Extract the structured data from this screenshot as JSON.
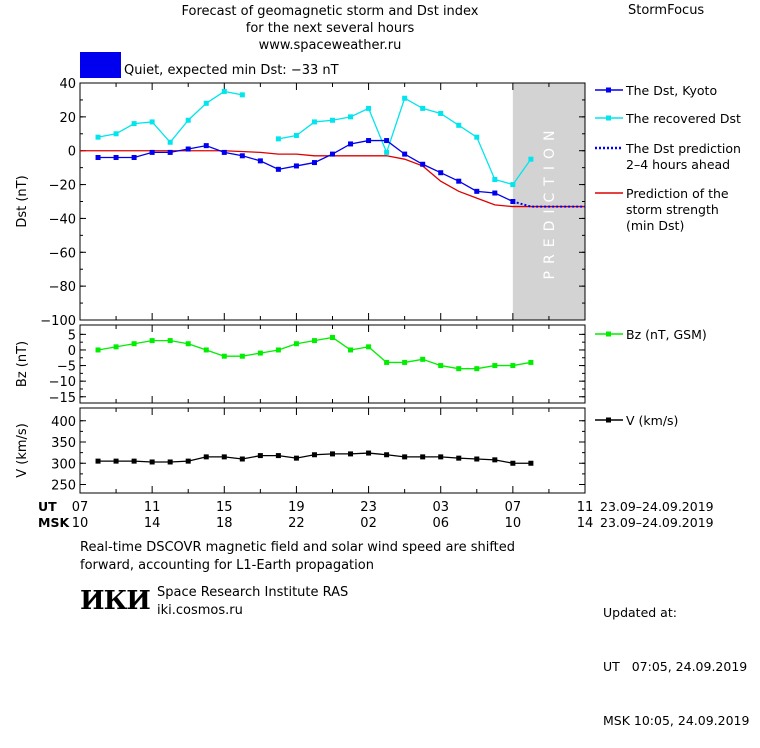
{
  "header": {
    "title_line1": "Forecast of geomagnetic storm and Dst index",
    "title_line2": "for the next several hours",
    "url": "www.spaceweather.ru",
    "brand": "StormFocus",
    "status": "Quiet, expected min Dst: −33 nT",
    "status_color": "#0000ee"
  },
  "legend": {
    "dst_kyoto": "The Dst, Kyoto",
    "recovered": "The recovered Dst",
    "prediction_line1": "The Dst prediction",
    "prediction_line2": "2–4 hours ahead",
    "strength_line1": "Prediction of the",
    "strength_line2": "storm strength",
    "strength_line3": "(min Dst)",
    "bz": "Bz (nT, GSM)",
    "v": "V (km/s)"
  },
  "axes": {
    "dst_label": "Dst (nT)",
    "bz_label": "Bz (nT)",
    "v_label": "V (km/s)",
    "ut_label": "UT",
    "msk_label": "MSK",
    "ut_ticks": [
      "07",
      "11",
      "15",
      "19",
      "23",
      "03",
      "07",
      "11"
    ],
    "msk_ticks": [
      "10",
      "14",
      "18",
      "22",
      "02",
      "06",
      "10",
      "14"
    ],
    "ut_range": "23.09–24.09.2019",
    "msk_range": "23.09–24.09.2019"
  },
  "prediction_band_text": "PREDICTION",
  "footer": {
    "note_line1": "Real-time DSCOVR magnetic field and solar wind speed are shifted",
    "note_line2": "forward, accounting for L1-Earth propagation",
    "logo": "ИКИ",
    "institute": "Space Research Institute RAS",
    "site": "iki.cosmos.ru",
    "updated_label": "Updated at:",
    "updated_ut": "UT   07:05, 24.09.2019",
    "updated_msk": "MSK 10:05, 24.09.2019"
  },
  "colors": {
    "dst_kyoto": "#0000ee",
    "recovered": "#00e5ee",
    "prediction": "#0000ee",
    "strength": "#dd0000",
    "bz": "#00ee00",
    "v": "#000000",
    "band": "#d3d3d3"
  },
  "chart_data": [
    {
      "type": "line",
      "ylabel": "Dst (nT)",
      "ylim": [
        -100,
        40
      ],
      "yticks": [
        40,
        20,
        0,
        -20,
        -40,
        -60,
        -80,
        -100
      ],
      "x_unit": "hours since 07 UT 23.09.2019",
      "xlim": [
        0,
        28
      ],
      "prediction_start": 24,
      "series": [
        {
          "name": "The Dst, Kyoto",
          "x": [
            1,
            2,
            3,
            4,
            5,
            6,
            7,
            8,
            9,
            10,
            11,
            12,
            13,
            14,
            15,
            16,
            17,
            18,
            19,
            20,
            21,
            22,
            23,
            24
          ],
          "y": [
            -4,
            -4,
            -4,
            -1,
            -1,
            1,
            3,
            -1,
            -3,
            -6,
            -11,
            -9,
            -7,
            -2,
            4,
            6,
            6,
            -2,
            -8,
            -13,
            -18,
            -24,
            -25,
            -30
          ]
        },
        {
          "name": "The recovered Dst",
          "x": [
            1,
            2,
            3,
            4,
            5,
            6,
            7,
            8,
            9,
            null,
            11,
            12,
            13,
            14,
            15,
            16,
            17,
            18,
            19,
            20,
            21,
            22,
            23,
            24,
            25
          ],
          "y": [
            8,
            10,
            16,
            17,
            5,
            18,
            28,
            35,
            33,
            null,
            7,
            9,
            17,
            18,
            20,
            25,
            -1,
            31,
            25,
            22,
            15,
            8,
            -17,
            -20,
            -5
          ]
        },
        {
          "name": "The Dst prediction 2–4 hours ahead",
          "x": [
            24,
            25,
            26,
            27,
            28
          ],
          "y": [
            -30,
            -33,
            -33,
            -33,
            -33
          ]
        },
        {
          "name": "Prediction of the storm strength (min Dst)",
          "x": [
            0,
            8,
            10,
            11,
            12,
            13,
            14,
            15,
            16,
            17,
            18,
            19,
            20,
            21,
            22,
            23,
            24,
            25,
            26,
            27,
            28
          ],
          "y": [
            0,
            0,
            -1,
            -2,
            -2,
            -3,
            -3,
            -3,
            -3,
            -3,
            -5,
            -9,
            -18,
            -24,
            -28,
            -32,
            -33,
            -33,
            -33,
            -33,
            -33
          ]
        }
      ]
    },
    {
      "type": "line",
      "ylabel": "Bz (nT)",
      "ylim": [
        -17,
        8
      ],
      "yticks": [
        5,
        0,
        -5,
        -10,
        -15
      ],
      "series": [
        {
          "name": "Bz (nT, GSM)",
          "x": [
            1,
            2,
            3,
            4,
            5,
            6,
            7,
            8,
            9,
            10,
            11,
            12,
            13,
            14,
            15,
            16,
            17,
            18,
            19,
            20,
            21,
            22,
            23,
            24,
            25
          ],
          "y": [
            0,
            1,
            2,
            3,
            3,
            2,
            0,
            -2,
            -2,
            -1,
            0,
            2,
            3,
            4,
            0,
            1,
            -4,
            -4,
            -3,
            -5,
            -6,
            -6,
            -5,
            -5,
            -4
          ]
        }
      ]
    },
    {
      "type": "line",
      "ylabel": "V (km/s)",
      "ylim": [
        230,
        430
      ],
      "yticks": [
        400,
        350,
        300,
        250
      ],
      "series": [
        {
          "name": "V (km/s)",
          "x": [
            1,
            2,
            3,
            4,
            5,
            6,
            7,
            8,
            9,
            10,
            11,
            12,
            13,
            14,
            15,
            16,
            17,
            18,
            19,
            20,
            21,
            22,
            23,
            24,
            25
          ],
          "y": [
            305,
            305,
            305,
            303,
            303,
            305,
            315,
            315,
            310,
            318,
            318,
            312,
            320,
            322,
            322,
            324,
            320,
            315,
            315,
            315,
            312,
            310,
            308,
            300,
            300
          ]
        }
      ]
    }
  ]
}
